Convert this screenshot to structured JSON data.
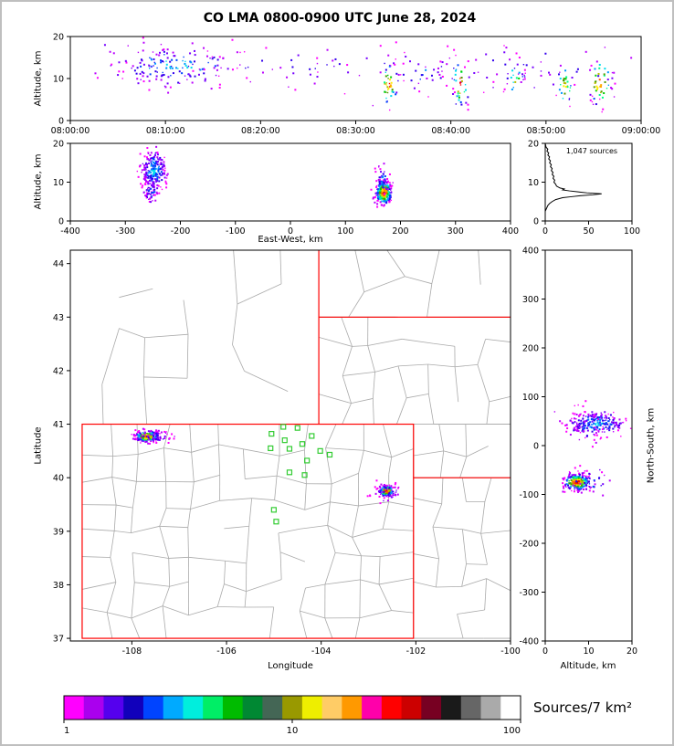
{
  "title": "CO LMA 0800-0900 UTC June 28, 2024",
  "style": {
    "background": "#FFFFFF",
    "axis_color": "#000000",
    "county_color": "#AAAAAA",
    "state_color": "#FF0000",
    "station_color": "#33CC33",
    "histogram_color": "#000000",
    "density_colors": [
      "#FF00FF",
      "#BB00FF",
      "#7700FF",
      "#3300EE",
      "#0044FF",
      "#0099FF",
      "#00DDEE",
      "#00FF88",
      "#00CC00",
      "#559900",
      "#BBBB00",
      "#FFEE00",
      "#FFAA00",
      "#FF5500",
      "#FF0000",
      "#AA0011",
      "#111111"
    ]
  },
  "chart_data": [
    {
      "id": "time_height",
      "type": "scatter",
      "ylabel": "Altitude, km",
      "xlim": [
        0,
        60
      ],
      "ylim": [
        0,
        20
      ],
      "xtick_minutes": [
        0,
        10,
        20,
        30,
        40,
        50,
        60
      ],
      "xtick_labels": [
        "08:00:00",
        "08:10:00",
        "08:20:00",
        "08:30:00",
        "08:40:00",
        "08:50:00",
        "09:00:00"
      ],
      "yticks": [
        0,
        10,
        20
      ],
      "clusters": [
        {
          "n": 150,
          "cx": 11,
          "cy": 13,
          "sx": 3.2,
          "sy": 2.3,
          "cmax": 6
        },
        {
          "n": 130,
          "uniformx": true,
          "xmin": 2,
          "xmax": 59,
          "cx": 30,
          "sx": 16,
          "cy": 12.5,
          "sy": 2.8,
          "cmax": 3
        },
        {
          "n": 40,
          "cx": 33.5,
          "cy": 8.5,
          "sx": 0.5,
          "sy": 2.6,
          "cmax": 14
        },
        {
          "n": 36,
          "cx": 41,
          "cy": 8.5,
          "sx": 0.5,
          "sy": 2.8,
          "cmax": 14
        },
        {
          "n": 24,
          "cx": 46.8,
          "cy": 9.5,
          "sx": 0.5,
          "sy": 2.6,
          "cmax": 10
        },
        {
          "n": 30,
          "cx": 52,
          "cy": 8.5,
          "sx": 0.45,
          "sy": 2.4,
          "cmax": 12
        },
        {
          "n": 44,
          "cx": 55.7,
          "cy": 9,
          "sx": 0.7,
          "sy": 2.9,
          "cmax": 14
        },
        {
          "n": 26,
          "cx": 37,
          "cy": 11.5,
          "sx": 1.6,
          "sy": 2.4,
          "cmax": 5
        }
      ]
    },
    {
      "id": "ew_height",
      "type": "scatter",
      "xlabel": "East-West, km",
      "ylabel": "Altitude, km",
      "xlim": [
        -400,
        400
      ],
      "ylim": [
        0,
        20
      ],
      "xticks": [
        -400,
        -300,
        -200,
        -100,
        0,
        100,
        200,
        300,
        400
      ],
      "yticks": [
        0,
        10,
        20
      ],
      "clusters": [
        {
          "n": 230,
          "cx": -248,
          "cy": 13,
          "sx": 11,
          "sy": 2.7,
          "cmax": 6
        },
        {
          "n": 46,
          "cx": -254,
          "cy": 7.5,
          "sx": 7,
          "sy": 1.4,
          "cmax": 4
        },
        {
          "n": 280,
          "cx": 170,
          "cy": 7.3,
          "sx": 7,
          "sy": 1.5,
          "cmax": 16
        },
        {
          "n": 40,
          "cx": 168,
          "cy": 10.5,
          "sx": 5,
          "sy": 1.8,
          "cmax": 5
        }
      ]
    },
    {
      "id": "alt_histogram",
      "type": "line",
      "annotation": "1,047 sources",
      "xlim": [
        0,
        100
      ],
      "ylim": [
        0,
        20
      ],
      "xticks": [
        0,
        50,
        100
      ],
      "yticks": [
        0,
        10,
        20
      ],
      "profile": [
        [
          20,
          0
        ],
        [
          19,
          1
        ],
        [
          18.5,
          3
        ],
        [
          18,
          2
        ],
        [
          17.5,
          4
        ],
        [
          17,
          3
        ],
        [
          16.5,
          5
        ],
        [
          16,
          4
        ],
        [
          15.5,
          6
        ],
        [
          15,
          5
        ],
        [
          14.5,
          7
        ],
        [
          14,
          6
        ],
        [
          13.5,
          8
        ],
        [
          13,
          7
        ],
        [
          12.5,
          9
        ],
        [
          12,
          8
        ],
        [
          11.5,
          10
        ],
        [
          11,
          9
        ],
        [
          10.5,
          11
        ],
        [
          10,
          10
        ],
        [
          9.5,
          12
        ],
        [
          9,
          13
        ],
        [
          8.5,
          17
        ],
        [
          8.25,
          22
        ],
        [
          8,
          20
        ],
        [
          7.75,
          28
        ],
        [
          7.5,
          38
        ],
        [
          7.25,
          48
        ],
        [
          7,
          65
        ],
        [
          6.75,
          55
        ],
        [
          6.5,
          40
        ],
        [
          6.25,
          30
        ],
        [
          6,
          20
        ],
        [
          5.5,
          12
        ],
        [
          5,
          8
        ],
        [
          4.5,
          5
        ],
        [
          4,
          3
        ],
        [
          3.5,
          2
        ],
        [
          3,
          1
        ],
        [
          2.5,
          0
        ],
        [
          0,
          0
        ]
      ]
    },
    {
      "id": "map",
      "type": "scatter",
      "xlabel": "Longitude",
      "ylabel": "Latitude",
      "xlim": [
        -109.3,
        -100
      ],
      "ylim": [
        36.95,
        44.25
      ],
      "xticks": [
        -108,
        -106,
        -104,
        -102,
        -100
      ],
      "yticks": [
        37,
        38,
        39,
        40,
        41,
        42,
        43,
        44
      ],
      "state_lines": [
        {
          "type": "rect",
          "x1": -109.05,
          "y1": 37,
          "x2": -102.05,
          "y2": 41
        },
        {
          "type": "line",
          "pts": [
            [
              -104.05,
              44.25
            ],
            [
              -104.05,
              41
            ]
          ]
        },
        {
          "type": "line",
          "pts": [
            [
              -104.05,
              43
            ],
            [
              -100,
              43
            ]
          ]
        },
        {
          "type": "line",
          "pts": [
            [
              -102.05,
              40
            ],
            [
              -100,
              40
            ]
          ]
        }
      ],
      "stations": [
        [
          -104.8,
          40.95
        ],
        [
          -104.5,
          40.93
        ],
        [
          -105.05,
          40.82
        ],
        [
          -104.2,
          40.78
        ],
        [
          -104.77,
          40.7
        ],
        [
          -104.4,
          40.63
        ],
        [
          -105.07,
          40.55
        ],
        [
          -104.67,
          40.54
        ],
        [
          -104.02,
          40.5
        ],
        [
          -103.82,
          40.43
        ],
        [
          -104.3,
          40.32
        ],
        [
          -104.67,
          40.1
        ],
        [
          -104.35,
          40.05
        ],
        [
          -105.0,
          39.4
        ],
        [
          -104.95,
          39.18
        ]
      ],
      "clusters": [
        {
          "n": 200,
          "cx": -107.68,
          "cy": 40.77,
          "sx": 0.12,
          "sy": 0.05,
          "cmax": 16
        },
        {
          "n": 60,
          "cx": -107.5,
          "cy": 40.76,
          "sx": 0.22,
          "sy": 0.07,
          "cmax": 3
        },
        {
          "n": 210,
          "cx": -102.62,
          "cy": 39.75,
          "sx": 0.075,
          "sy": 0.05,
          "cmax": 16
        },
        {
          "n": 40,
          "cx": -102.6,
          "cy": 39.73,
          "sx": 0.18,
          "sy": 0.1,
          "cmax": 3
        }
      ]
    },
    {
      "id": "ns_height",
      "type": "scatter",
      "xlabel": "Altitude, km",
      "ylabel": "North-South, km",
      "xlim": [
        0,
        20
      ],
      "ylim": [
        -400,
        400
      ],
      "xticks": [
        0,
        10,
        20
      ],
      "yticks": [
        -400,
        -300,
        -200,
        -100,
        0,
        100,
        200,
        300,
        400
      ],
      "clusters": [
        {
          "n": 200,
          "cx": 12,
          "cy": 45,
          "sx": 3.2,
          "sy": 12,
          "cmax": 6
        },
        {
          "n": 60,
          "cx": 9,
          "cy": 40,
          "sx": 2.5,
          "sy": 20,
          "cmax": 3
        },
        {
          "n": 250,
          "cx": 7.3,
          "cy": -75,
          "sx": 1.5,
          "sy": 8,
          "cmax": 16
        },
        {
          "n": 40,
          "cx": 10,
          "cy": -72,
          "sx": 2.5,
          "sy": 14,
          "cmax": 4
        }
      ]
    },
    {
      "id": "colorbar",
      "type": "heatmap",
      "label": "Sources/7 km²",
      "tick_labels": [
        "1",
        "10",
        "100"
      ],
      "colors": [
        "#FF00FF",
        "#AA00EE",
        "#5500EE",
        "#1100BB",
        "#0044FF",
        "#00AAFF",
        "#00EEDD",
        "#00EE66",
        "#00BB00",
        "#008833",
        "#446655",
        "#999900",
        "#EEEE00",
        "#FFCC66",
        "#FF9900",
        "#FF00AA",
        "#FF0000",
        "#CC0000",
        "#770022",
        "#1A1A1A",
        "#666666",
        "#AAAAAA",
        "#FFFFFF"
      ]
    }
  ]
}
